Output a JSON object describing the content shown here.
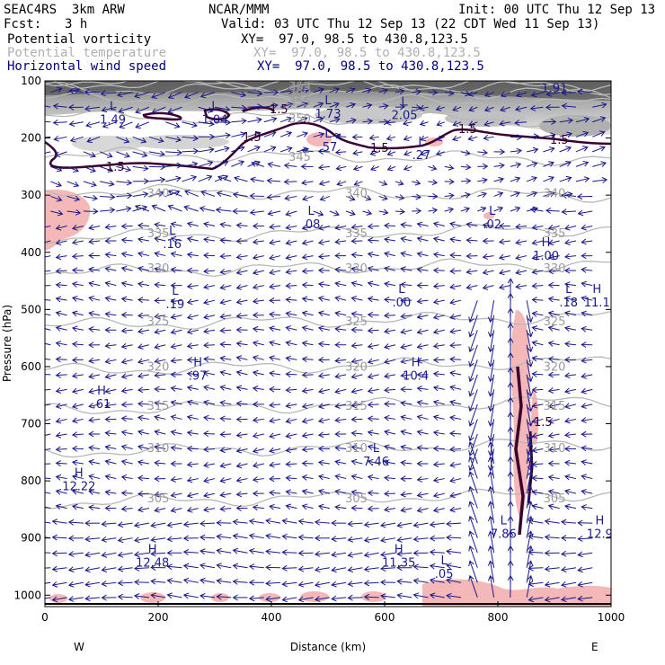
{
  "header": {
    "model": "SEAC4RS  3km ARW",
    "center": "NCAR/MMM",
    "init": "Init: 00 UTC Thu 12 Sep 13",
    "fcst_label": "Fcst:",
    "fcst_value": "3 h",
    "valid": "Valid: 03 UTC Thu 12 Sep 13 (22 CDT Wed 11 Sep 13)",
    "fields": [
      {
        "name": "Potential vorticity",
        "xy": "XY=  97.0, 98.5 to 430.8,123.5"
      },
      {
        "name": "Potential temperature",
        "xy": "XY=  97.0, 98.5 to 430.8,123.5"
      },
      {
        "name": "Horizontal wind speed",
        "xy": "XY=  97.0, 98.5 to 430.8,123.5"
      }
    ]
  },
  "chart_data": {
    "type": "cross-section",
    "xlabel": "Distance (km)",
    "ylabel": "Pressure (hPa)",
    "xlim": [
      0,
      1000
    ],
    "ylim": [
      1020,
      100
    ],
    "x_ticks": [
      0,
      200,
      400,
      600,
      800,
      1000
    ],
    "y_ticks": [
      100,
      200,
      300,
      400,
      500,
      600,
      700,
      800,
      900,
      1000
    ],
    "left_endpoint": "W",
    "right_endpoint": "E",
    "theta_contours": [
      {
        "label": "340",
        "p": 296
      },
      {
        "label": "335",
        "p": 366
      },
      {
        "label": "330",
        "p": 427
      },
      {
        "label": "325",
        "p": 520
      },
      {
        "label": "320",
        "p": 599
      },
      {
        "label": "315",
        "p": 668
      },
      {
        "label": "310",
        "p": 742
      },
      {
        "label": "305",
        "p": 830
      },
      {
        "label": "345",
        "p": 232
      },
      {
        "label": "350",
        "p": 165
      },
      {
        "label": "355",
        "p": 135
      },
      {
        "label": "360",
        "p": 118
      },
      {
        "label": "365",
        "p": 108
      },
      {
        "label": "375",
        "p": 103
      }
    ],
    "pv_contour_label": "1.5",
    "extrema": [
      {
        "kind": "L",
        "value": "1.49",
        "x": 120,
        "p": 170
      },
      {
        "kind": "L",
        "value": "1.04",
        "x": 300,
        "p": 170
      },
      {
        "kind": "L",
        "value": "1.73",
        "x": 500,
        "p": 160
      },
      {
        "kind": "L",
        "value": "2.05",
        "x": 635,
        "p": 162
      },
      {
        "kind": "L",
        "value": ".57",
        "x": 500,
        "p": 218
      },
      {
        "kind": "L",
        "value": ".27",
        "x": 665,
        "p": 232
      },
      {
        "kind": "L",
        "value": ".08",
        "x": 470,
        "p": 353
      },
      {
        "kind": "L",
        "value": ".02",
        "x": 790,
        "p": 353
      },
      {
        "kind": "L",
        "value": ".16",
        "x": 225,
        "p": 388
      },
      {
        "kind": "H",
        "value": "1.00",
        "x": 885,
        "p": 408
      },
      {
        "kind": "L",
        "value": ".19",
        "x": 230,
        "p": 493
      },
      {
        "kind": "L",
        "value": ".00",
        "x": 630,
        "p": 490
      },
      {
        "kind": "L",
        "value": ".18",
        "x": 925,
        "p": 490
      },
      {
        "kind": "H",
        "value": "11.1",
        "x": 975,
        "p": 490
      },
      {
        "kind": "H",
        "value": ".97",
        "x": 270,
        "p": 618
      },
      {
        "kind": "H",
        "value": "10.4",
        "x": 655,
        "p": 618
      },
      {
        "kind": "H",
        "value": ".61",
        "x": 100,
        "p": 668
      },
      {
        "kind": "L",
        "value": "7.46",
        "x": 585,
        "p": 768
      },
      {
        "kind": "H",
        "value": "12.22",
        "x": 60,
        "p": 812
      },
      {
        "kind": "H",
        "value": "12.48",
        "x": 190,
        "p": 945
      },
      {
        "kind": "H",
        "value": "11.35",
        "x": 625,
        "p": 945
      },
      {
        "kind": "L",
        "value": ".05",
        "x": 705,
        "p": 965
      },
      {
        "kind": "L",
        "value": "7.86",
        "x": 810,
        "p": 895
      },
      {
        "kind": "H",
        "value": "12.9",
        "x": 980,
        "p": 895
      },
      {
        "kind": "L",
        "value": "1.91",
        "x": 900,
        "p": 115
      }
    ]
  }
}
